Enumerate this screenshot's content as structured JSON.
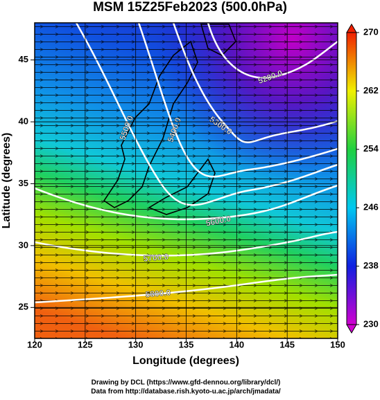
{
  "chart_data": {
    "type": "map",
    "title": "MSM 15Z25Feb2023 (500.0hPa)",
    "x_label": "Longitude (degrees)",
    "y_label": "Latitude  (degrees)",
    "xlim": [
      120,
      150
    ],
    "xticks": [
      120,
      125,
      130,
      135,
      140,
      145,
      150
    ],
    "ylim": [
      22.5,
      48
    ],
    "yticks": [
      25,
      30,
      35,
      40,
      45
    ],
    "grid": true,
    "colorbar": {
      "lim": [
        230,
        270
      ],
      "ticks": [
        230,
        238,
        246,
        254,
        262,
        270
      ],
      "colors": [
        "#d000d0",
        "#1020e0",
        "#00c8f0",
        "#20d040",
        "#f0f000",
        "#f02000"
      ]
    },
    "contours": [
      {
        "value": 5200,
        "label": "5200.0"
      },
      {
        "value": 5300,
        "label": "5300.0"
      },
      {
        "value": 5400,
        "label": "5400.0"
      },
      {
        "value": 5500,
        "label": "5500.0"
      },
      {
        "value": 5600,
        "label": "5600.0"
      },
      {
        "value": 5700,
        "label": "5700.0"
      },
      {
        "value": 5800,
        "label": "5800.0"
      }
    ],
    "footer": [
      "Drawing by DCL (https://www.gfd-dennou.org/library/dcl/)",
      "Data from http://database.rish.kyoto-u.ac.jp/arch/jmadata/"
    ]
  }
}
